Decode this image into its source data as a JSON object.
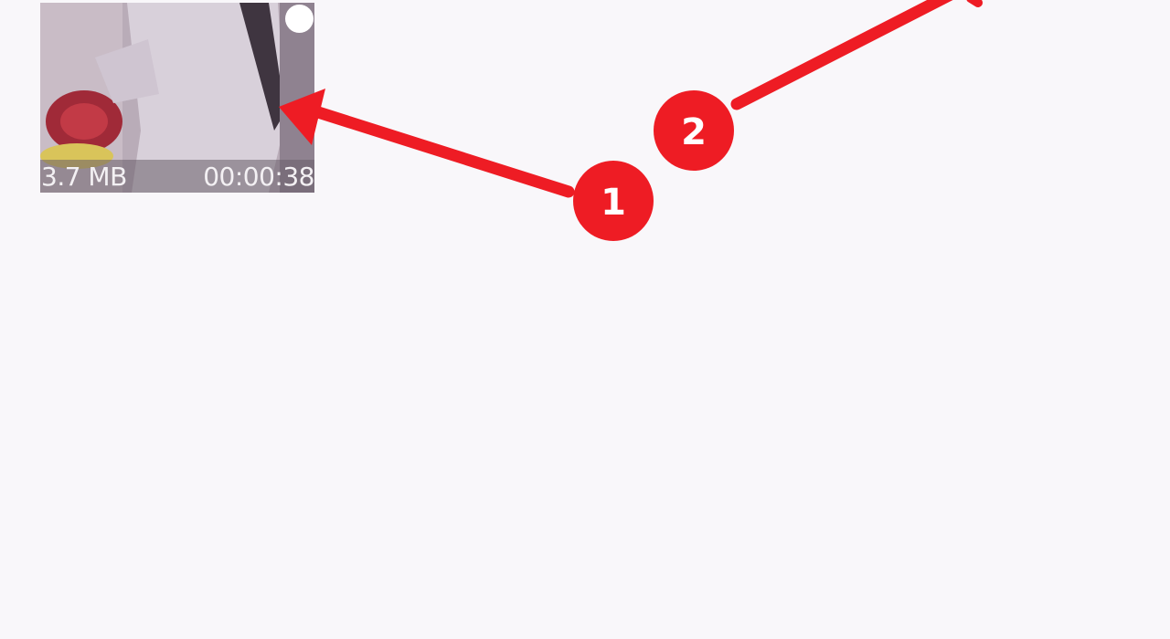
{
  "video": {
    "size": "3.7 MB",
    "duration": "00:00:38"
  },
  "annotations": {
    "color": "#ee1c24",
    "markers": [
      "1",
      "2"
    ]
  }
}
